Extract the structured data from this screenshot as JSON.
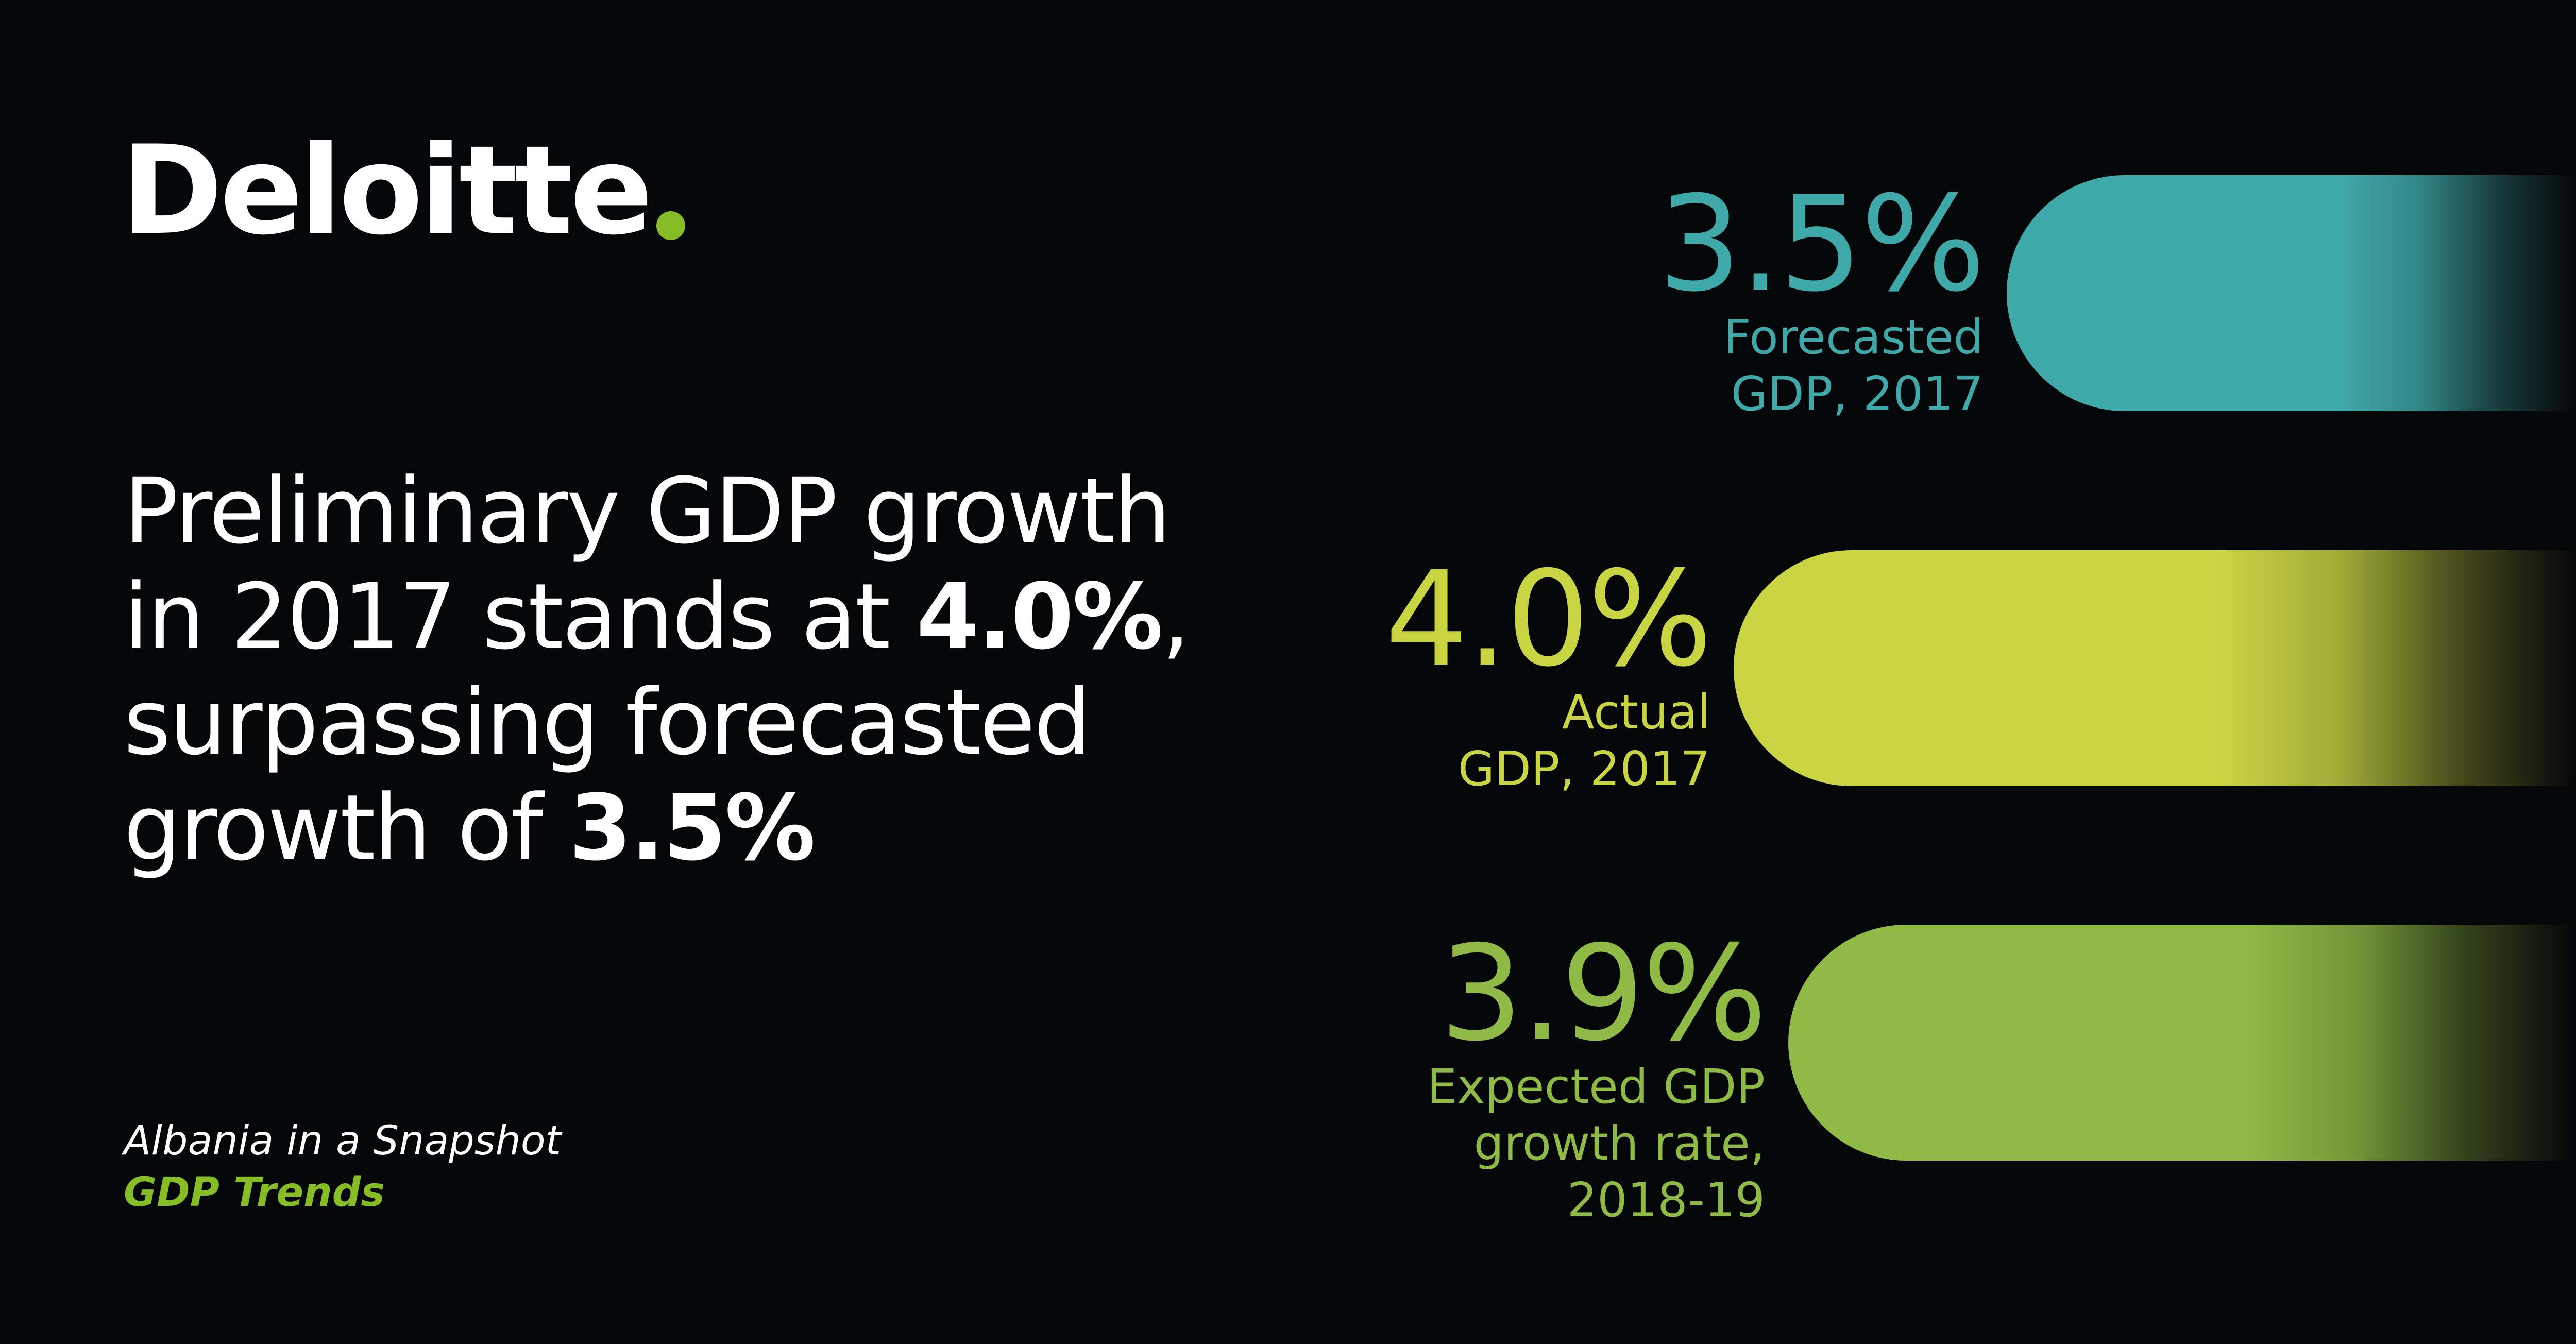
{
  "brand": {
    "name": "Deloitte",
    "dot_color": "#86bc25"
  },
  "headline": {
    "line1": "Preliminary GDP growth",
    "line2_prefix": "in 2017 stands at ",
    "line2_bold": "4.0%",
    "line2_suffix": ",",
    "line3": "surpassing forecasted",
    "line4_prefix": "growth of ",
    "line4_bold": "3.5%"
  },
  "caption": {
    "line1": "Albania in a Snapshot",
    "line2": "GDP Trends"
  },
  "chart_data": {
    "type": "bar",
    "orientation": "horizontal",
    "unit": "%",
    "series": [
      {
        "value": 3.5,
        "value_label": "3.5%",
        "label_lines": [
          "Forecasted",
          "GDP, 2017"
        ],
        "color": "#3fa9a9"
      },
      {
        "value": 4.0,
        "value_label": "4.0%",
        "label_lines": [
          "Actual",
          "GDP, 2017"
        ],
        "color": "#c9d443"
      },
      {
        "value": 3.9,
        "value_label": "3.9%",
        "label_lines": [
          "Expected GDP",
          "growth rate,",
          "2018-19"
        ],
        "color": "#8fba45"
      }
    ],
    "grid": false,
    "legend": "none"
  }
}
